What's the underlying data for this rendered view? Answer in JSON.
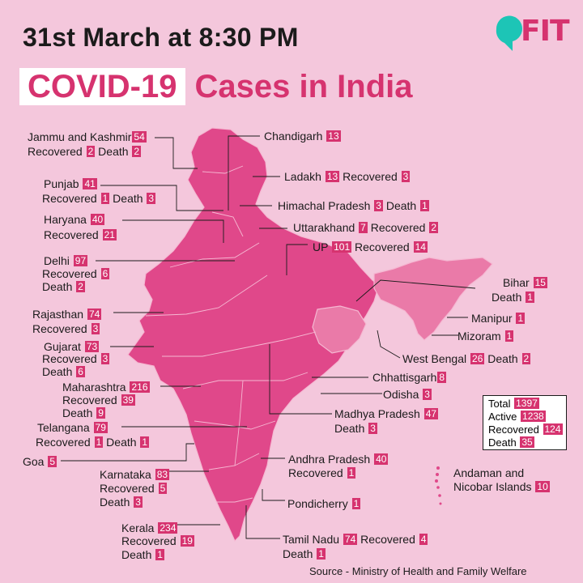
{
  "header": {
    "date_line": "31st March at 8:30 PM",
    "title_boxed": "COVID-19",
    "title_rest": "Cases in India"
  },
  "logo": {
    "text": "FIT",
    "icon": "speech-bubble-icon",
    "color": "#1dc5b6"
  },
  "colors": {
    "accent": "#d6336f",
    "map_fill": "#e0488a",
    "map_border": "#f5b8d2",
    "background": "#f4c7dc",
    "east_fill": "#ea7aa8"
  },
  "states": {
    "jk": {
      "name": "Jammu and Kashmir",
      "cases": "54",
      "rec_label": "Recovered",
      "rec": "2",
      "death_label": "Death",
      "death": "2"
    },
    "chandigarh": {
      "name": "Chandigarh",
      "cases": "13"
    },
    "ladakh": {
      "name": "Ladakh",
      "cases": "13",
      "rec_label": "Recovered",
      "rec": "3"
    },
    "punjab": {
      "name": "Punjab",
      "cases": "41",
      "rec_label": "Recovered",
      "rec": "1",
      "death_label": "Death",
      "death": "3"
    },
    "hp": {
      "name": "Himachal Pradesh",
      "cases": "3",
      "death_label": "Death",
      "death": "1"
    },
    "haryana": {
      "name": "Haryana",
      "cases": "40",
      "rec_label": "Recovered",
      "rec": "21"
    },
    "uttarakhand": {
      "name": "Uttarakhand",
      "cases": "7",
      "rec_label": "Recovered",
      "rec": "2"
    },
    "up": {
      "name": "UP",
      "cases": "101",
      "rec_label": "Recovered",
      "rec": "14"
    },
    "delhi": {
      "name": "Delhi",
      "cases": "97",
      "rec_label": "Recovered",
      "rec": "6",
      "death_label": "Death",
      "death": "2"
    },
    "bihar": {
      "name": "Bihar",
      "cases": "15",
      "death_label": "Death",
      "death": "1"
    },
    "rajasthan": {
      "name": "Rajasthan",
      "cases": "74",
      "rec_label": "Recovered",
      "rec": "3"
    },
    "manipur": {
      "name": "Manipur",
      "cases": "1"
    },
    "mizoram": {
      "name": "Mizoram",
      "cases": "1"
    },
    "gujarat": {
      "name": "Gujarat",
      "cases": "73",
      "rec_label": "Recovered",
      "rec": "3",
      "death_label": "Death",
      "death": "6"
    },
    "wb": {
      "name": "West Bengal",
      "cases": "26",
      "death_label": "Death",
      "death": "2"
    },
    "chhattisgarh": {
      "name": "Chhattisgarh",
      "cases": "8"
    },
    "maharashtra": {
      "name": "Maharashtra",
      "cases": "216",
      "rec_label": "Recovered",
      "rec": "39",
      "death_label": "Death",
      "death": "9"
    },
    "odisha": {
      "name": "Odisha",
      "cases": "3"
    },
    "mp": {
      "name": "Madhya Pradesh",
      "cases": "47",
      "death_label": "Death",
      "death": "3"
    },
    "telangana": {
      "name": "Telangana",
      "cases": "79",
      "rec_label": "Recovered",
      "rec": "1",
      "death_label": "Death",
      "death": "1"
    },
    "goa": {
      "name": "Goa",
      "cases": "5"
    },
    "ap": {
      "name": "Andhra Pradesh",
      "cases": "40",
      "rec_label": "Recovered",
      "rec": "1"
    },
    "karnataka": {
      "name": "Karnataka",
      "cases": "83",
      "rec_label": "Recovered",
      "rec": "5",
      "death_label": "Death",
      "death": "3"
    },
    "andaman": {
      "name_line1": "Andaman and",
      "name_line2": "Nicobar Islands",
      "cases": "10"
    },
    "pondicherry": {
      "name": "Pondicherry",
      "cases": "1"
    },
    "kerala": {
      "name": "Kerala",
      "cases": "234",
      "rec_label": "Recovered",
      "rec": "19",
      "death_label": "Death",
      "death": "1"
    },
    "tn": {
      "name": "Tamil Nadu",
      "cases": "74",
      "rec_label": "Recovered",
      "rec": "4",
      "death_label": "Death",
      "death": "1"
    }
  },
  "totals": {
    "total_label": "Total",
    "total": "1397",
    "active_label": "Active",
    "active": "1238",
    "recovered_label": "Recovered",
    "recovered": "124",
    "death_label": "Death",
    "death": "35"
  },
  "source": "Source - Ministry of Health and Family Welfare"
}
